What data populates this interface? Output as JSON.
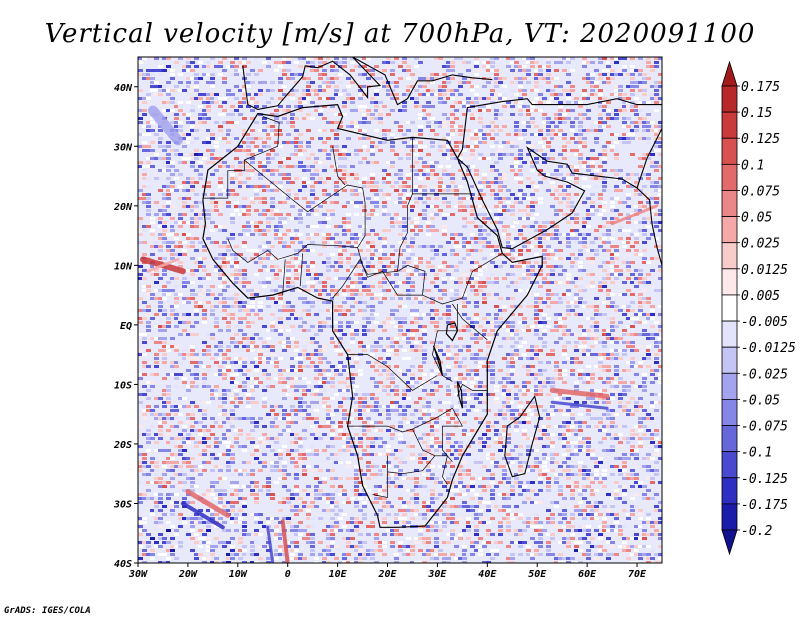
{
  "chart_data": {
    "type": "heatmap",
    "title": "Vertical velocity [m/s] at 700hPa, VT: 2020091100",
    "variable": "Vertical velocity",
    "units": "m/s",
    "level": "700hPa",
    "valid_time": "2020091100",
    "xlim": [
      -30,
      75
    ],
    "ylim": [
      -40,
      45
    ],
    "x_ticks": [
      {
        "value": -30,
        "label": "30W"
      },
      {
        "value": -20,
        "label": "20W"
      },
      {
        "value": -10,
        "label": "10W"
      },
      {
        "value": 0,
        "label": "0"
      },
      {
        "value": 10,
        "label": "10E"
      },
      {
        "value": 20,
        "label": "20E"
      },
      {
        "value": 30,
        "label": "30E"
      },
      {
        "value": 40,
        "label": "40E"
      },
      {
        "value": 50,
        "label": "50E"
      },
      {
        "value": 60,
        "label": "60E"
      },
      {
        "value": 70,
        "label": "70E"
      }
    ],
    "y_ticks": [
      {
        "value": 40,
        "label": "40N"
      },
      {
        "value": 30,
        "label": "30N"
      },
      {
        "value": 20,
        "label": "20N"
      },
      {
        "value": 10,
        "label": "10N"
      },
      {
        "value": 0,
        "label": "EQ"
      },
      {
        "value": -10,
        "label": "10S"
      },
      {
        "value": -20,
        "label": "20S"
      },
      {
        "value": -30,
        "label": "30S"
      },
      {
        "value": -40,
        "label": "40S"
      }
    ],
    "colorbar": {
      "labels": [
        "0.175",
        "0.15",
        "0.125",
        "0.1",
        "0.075",
        "0.05",
        "0.025",
        "0.0125",
        "0.005",
        "-0.005",
        "-0.0125",
        "-0.025",
        "-0.05",
        "-0.075",
        "-0.1",
        "-0.125",
        "-0.175",
        "-0.2"
      ],
      "colors": [
        "#a31a1a",
        "#b82828",
        "#c93a3a",
        "#d75151",
        "#e26a6a",
        "#ec8787",
        "#f4a8a8",
        "#f9cccc",
        "#fde9e9",
        "#ffffff",
        "#e3e3fb",
        "#c4c4f5",
        "#a4a4ee",
        "#8686e6",
        "#6767dc",
        "#4a4ad0",
        "#2e2ec2",
        "#1c1caa",
        "#12128e"
      ]
    },
    "notes": "Near-zero field speckled with small positive (red) and negative (blue) cells; strong banded features near 10N off West Africa, 12S 55-65E, and 28-33S 20-12W."
  },
  "footer": {
    "credit": "GrADS: IGES/COLA"
  }
}
